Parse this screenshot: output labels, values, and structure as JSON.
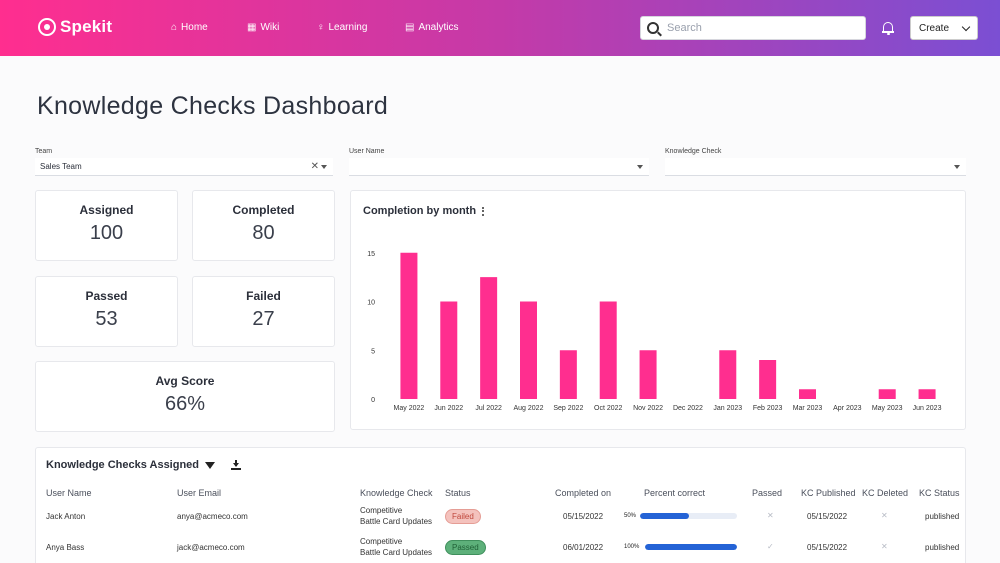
{
  "header": {
    "logo_text": "Spekit",
    "nav": [
      {
        "label": "Home",
        "icon": "home-icon"
      },
      {
        "label": "Wiki",
        "icon": "grid-icon"
      },
      {
        "label": "Learning",
        "icon": "lightbulb-icon"
      },
      {
        "label": "Analytics",
        "icon": "chart-icon"
      }
    ],
    "search_placeholder": "Search",
    "create_label": "Create"
  },
  "page_title": "Knowledge Checks Dashboard",
  "filters": {
    "team": {
      "label": "Team",
      "value": "Sales Team"
    },
    "user_name": {
      "label": "User Name",
      "value": ""
    },
    "knowledge_check": {
      "label": "Knowledge Check",
      "value": ""
    }
  },
  "stats": {
    "assigned": {
      "label": "Assigned",
      "value": "100"
    },
    "completed": {
      "label": "Completed",
      "value": "80"
    },
    "passed": {
      "label": "Passed",
      "value": "53"
    },
    "failed": {
      "label": "Failed",
      "value": "27"
    },
    "avg_score": {
      "label": "Avg Score",
      "value": "66%"
    }
  },
  "chart_title": "Completion by month",
  "chart_data": {
    "type": "bar",
    "title": "Completion by month",
    "categories": [
      "May 2022",
      "Jun 2022",
      "Jul 2022",
      "Aug 2022",
      "Sep 2022",
      "Oct 2022",
      "Nov 2022",
      "Dec 2022",
      "Jan 2023",
      "Feb 2023",
      "Mar 2023",
      "Apr 2023",
      "May 2023",
      "Jun 2023"
    ],
    "values": [
      15,
      10,
      12.5,
      10,
      5,
      10,
      5,
      0,
      5,
      4,
      1,
      0,
      1,
      1
    ],
    "ylim": [
      0,
      16
    ],
    "yticks": [
      0,
      5,
      10,
      15
    ],
    "color": "#ff2e8f",
    "grid": false
  },
  "table": {
    "title": "Knowledge Checks Assigned",
    "columns": [
      "User Name",
      "User Email",
      "Knowledge Check",
      "Status",
      "Completed on",
      "Percent correct",
      "Passed",
      "KC Published",
      "KC Deleted",
      "KC Status"
    ],
    "rows": [
      {
        "user_name": "Jack Anton",
        "email": "anya@acmeco.com",
        "kc_line1": "Competitive",
        "kc_line2": "Battle Card Updates",
        "status": "Failed",
        "completed_on": "05/15/2022",
        "percent": "50%",
        "percent_value": 0.5,
        "passed": "✕",
        "published": "05/15/2022",
        "deleted": "✕",
        "kc_status": "published"
      },
      {
        "user_name": "Anya Bass",
        "email": "jack@acmeco.com",
        "kc_line1": "Competitive",
        "kc_line2": "Battle Card Updates",
        "status": "Passed",
        "completed_on": "06/01/2022",
        "percent": "100%",
        "percent_value": 1.0,
        "passed": "✓",
        "published": "05/15/2022",
        "deleted": "✕",
        "kc_status": "published"
      }
    ]
  },
  "colors": {
    "accent_pink": "#ff2e8f",
    "accent_purple": "#7b4fd3",
    "progress_blue": "#2463d6"
  }
}
